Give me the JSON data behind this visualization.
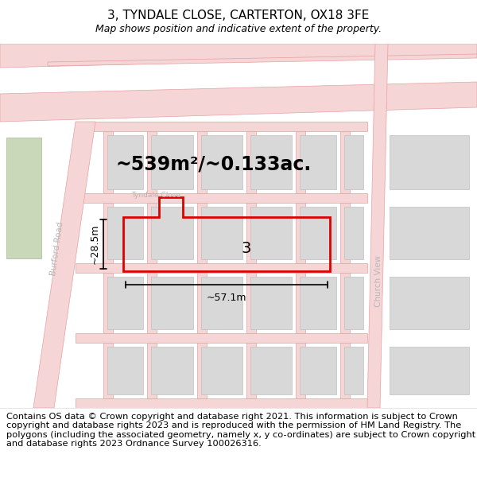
{
  "title": "3, TYNDALE CLOSE, CARTERTON, OX18 3FE",
  "subtitle": "Map shows position and indicative extent of the property.",
  "title_fontsize": 11,
  "subtitle_fontsize": 9,
  "bg_color": "#ffffff",
  "map_bg": "#f8f8f8",
  "road_fill": "#f5d5d5",
  "road_edge": "#e8a0a0",
  "building_color": "#d8d8d8",
  "building_edge": "#c0c0c0",
  "green_color": "#c8d8b8",
  "green_edge": "#a8b898",
  "plot_color": "#dd0000",
  "plot_lw": 2.0,
  "annotation_color": "#000000",
  "street_label_color": "#b0b0b0",
  "area_text": "~539m²/~0.133ac.",
  "area_fontsize": 17,
  "label_3": "3",
  "label_3_fontsize": 14,
  "dim_width": "~57.1m",
  "dim_height": "~28.5m",
  "dim_fontsize": 9,
  "footer_text": "Contains OS data © Crown copyright and database right 2021. This information is subject to Crown copyright and database rights 2023 and is reproduced with the permission of HM Land Registry. The polygons (including the associated geometry, namely x, y co-ordinates) are subject to Crown copyright and database rights 2023 Ordnance Survey 100026316.",
  "footer_fontsize": 8.2
}
